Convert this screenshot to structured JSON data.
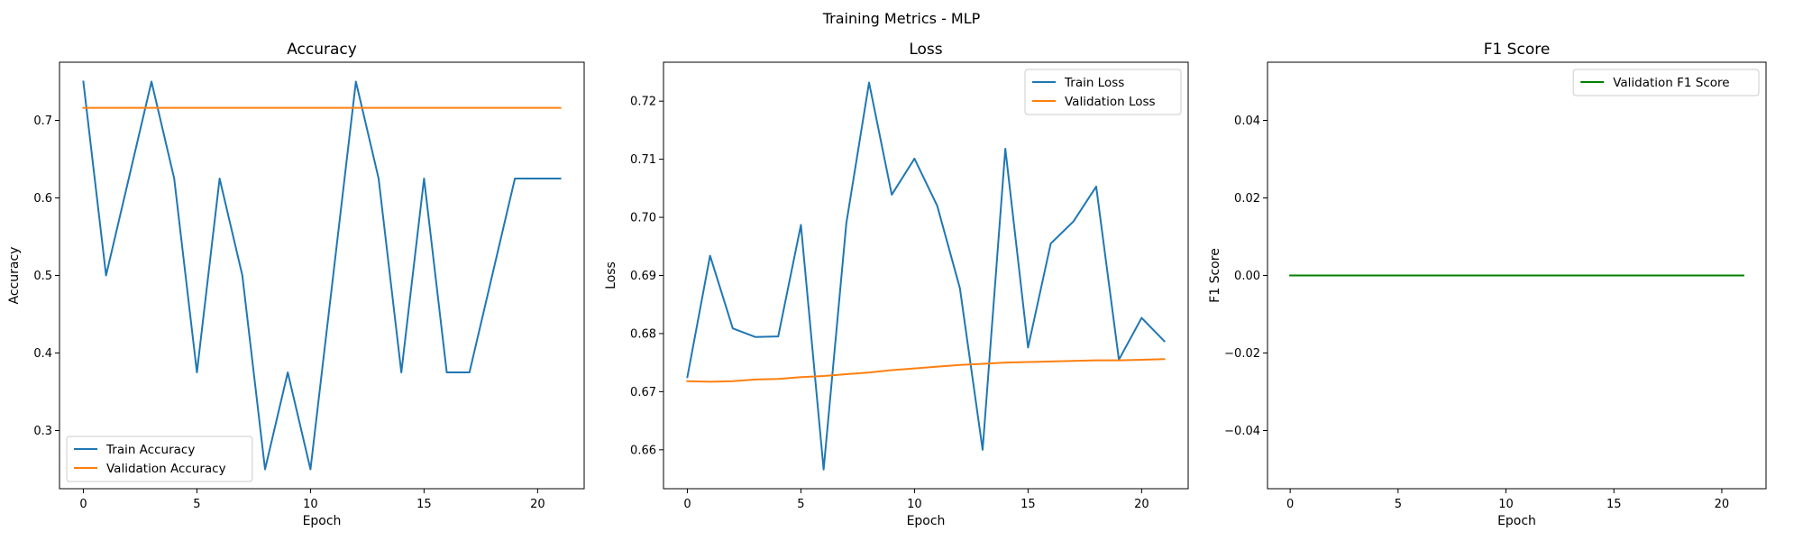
{
  "figure": {
    "title": "Training Metrics - MLP"
  },
  "chart_data": [
    {
      "type": "line",
      "title": "Accuracy",
      "xlabel": "Epoch",
      "ylabel": "Accuracy",
      "xlim": [
        -1.05,
        22.05
      ],
      "ylim": [
        0.225,
        0.775
      ],
      "xticks": [
        0,
        5,
        10,
        15,
        20
      ],
      "yticks": [
        0.3,
        0.4,
        0.5,
        0.6,
        0.7
      ],
      "tick_decimals": 1,
      "grid": false,
      "legend": "bottom-left",
      "x": [
        0,
        1,
        2,
        3,
        4,
        5,
        6,
        7,
        8,
        9,
        10,
        11,
        12,
        13,
        14,
        15,
        16,
        17,
        18,
        19,
        20,
        21
      ],
      "series": [
        {
          "name": "Train Accuracy",
          "color": "#1f77b4",
          "values": [
            0.75,
            0.5,
            0.625,
            0.75,
            0.625,
            0.375,
            0.625,
            0.5,
            0.25,
            0.375,
            0.25,
            0.5,
            0.75,
            0.625,
            0.375,
            0.625,
            0.375,
            0.375,
            0.5,
            0.625,
            0.625,
            0.625
          ]
        },
        {
          "name": "Validation Accuracy",
          "color": "#ff7f0e",
          "values": [
            0.7162,
            0.7162,
            0.7162,
            0.7162,
            0.7162,
            0.7162,
            0.7162,
            0.7162,
            0.7162,
            0.7162,
            0.7162,
            0.7162,
            0.7162,
            0.7162,
            0.7162,
            0.7162,
            0.7162,
            0.7162,
            0.7162,
            0.7162,
            0.7162,
            0.7162
          ]
        }
      ]
    },
    {
      "type": "line",
      "title": "Loss",
      "xlabel": "Epoch",
      "ylabel": "Loss",
      "xlim": [
        -1.05,
        22.05
      ],
      "ylim": [
        0.6533,
        0.7267
      ],
      "xticks": [
        0,
        5,
        10,
        15,
        20
      ],
      "yticks": [
        0.66,
        0.67,
        0.68,
        0.69,
        0.7,
        0.71,
        0.72
      ],
      "tick_decimals": 2,
      "grid": false,
      "legend": "top-right",
      "x": [
        0,
        1,
        2,
        3,
        4,
        5,
        6,
        7,
        8,
        9,
        10,
        11,
        12,
        13,
        14,
        15,
        16,
        17,
        18,
        19,
        20,
        21
      ],
      "series": [
        {
          "name": "Train Loss",
          "color": "#1f77b4",
          "values": [
            0.6725,
            0.6934,
            0.6809,
            0.6794,
            0.6795,
            0.6987,
            0.6566,
            0.699,
            0.7232,
            0.7039,
            0.7101,
            0.702,
            0.6878,
            0.66,
            0.7118,
            0.6776,
            0.6955,
            0.6993,
            0.7053,
            0.6755,
            0.6827,
            0.6787
          ]
        },
        {
          "name": "Validation Loss",
          "color": "#ff7f0e",
          "values": [
            0.6718,
            0.6717,
            0.6718,
            0.6721,
            0.6722,
            0.6725,
            0.6727,
            0.673,
            0.6733,
            0.6737,
            0.674,
            0.6743,
            0.6746,
            0.6748,
            0.675,
            0.6751,
            0.6752,
            0.6753,
            0.6754,
            0.6754,
            0.6755,
            0.6756
          ]
        }
      ]
    },
    {
      "type": "line",
      "title": "F1 Score",
      "xlabel": "Epoch",
      "ylabel": "F1 Score",
      "xlim": [
        -1.05,
        22.05
      ],
      "ylim": [
        -0.055,
        0.055
      ],
      "xticks": [
        0,
        5,
        10,
        15,
        20
      ],
      "yticks": [
        -0.04,
        -0.02,
        0.0,
        0.02,
        0.04
      ],
      "tick_decimals": 2,
      "grid": false,
      "legend": "top-right",
      "x": [
        0,
        1,
        2,
        3,
        4,
        5,
        6,
        7,
        8,
        9,
        10,
        11,
        12,
        13,
        14,
        15,
        16,
        17,
        18,
        19,
        20,
        21
      ],
      "series": [
        {
          "name": "Validation F1 Score",
          "color": "#008000",
          "values": [
            0,
            0,
            0,
            0,
            0,
            0,
            0,
            0,
            0,
            0,
            0,
            0,
            0,
            0,
            0,
            0,
            0,
            0,
            0,
            0,
            0,
            0
          ]
        }
      ]
    }
  ]
}
